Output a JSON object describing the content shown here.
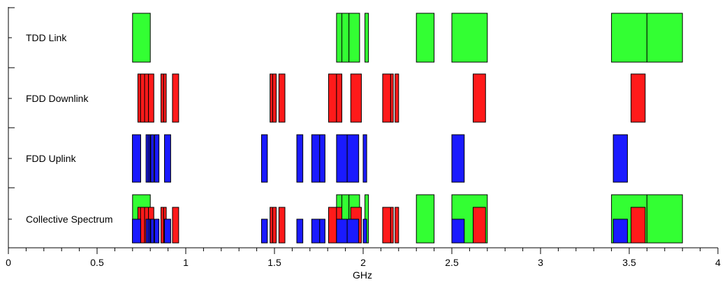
{
  "chart_data": {
    "type": "bar",
    "orientation": "horizontal-ranges",
    "title": "",
    "xlabel": "GHz",
    "ylabel": "",
    "xlim": [
      0,
      4
    ],
    "x_ticks": [
      0,
      0.5,
      1,
      1.5,
      2,
      2.5,
      3,
      3.5,
      4
    ],
    "x_tick_labels": [
      "0",
      "0.5",
      "1",
      "1.5",
      "2",
      "2.5",
      "3",
      "3.5",
      "4"
    ],
    "grid": false,
    "legend": "none",
    "categories": [
      "TDD Link",
      "FDD Downlink",
      "FDD Uplink",
      "Collective Spectrum"
    ],
    "colors": {
      "tdd": "#33ff33",
      "fdd_downlink": "#ff1a1a",
      "fdd_uplink": "#1a1aff",
      "outline": "#000000"
    },
    "bands": {
      "tdd": [
        [
          0.7,
          0.8
        ],
        [
          1.85,
          1.88
        ],
        [
          1.88,
          1.92
        ],
        [
          1.92,
          1.98
        ],
        [
          2.01,
          2.03
        ],
        [
          2.3,
          2.4
        ],
        [
          2.5,
          2.7
        ],
        [
          3.4,
          3.6
        ],
        [
          3.6,
          3.8
        ]
      ],
      "fdd_downlink": [
        [
          0.73,
          0.745
        ],
        [
          0.745,
          0.768
        ],
        [
          0.768,
          0.79
        ],
        [
          0.79,
          0.82
        ],
        [
          0.86,
          0.875
        ],
        [
          0.875,
          0.89
        ],
        [
          0.925,
          0.96
        ],
        [
          1.475,
          1.49
        ],
        [
          1.49,
          1.51
        ],
        [
          1.525,
          1.559
        ],
        [
          1.805,
          1.85
        ],
        [
          1.85,
          1.88
        ],
        [
          1.93,
          1.99
        ],
        [
          2.11,
          2.155
        ],
        [
          2.155,
          2.17
        ],
        [
          2.18,
          2.2
        ],
        [
          2.62,
          2.69
        ],
        [
          3.51,
          3.59
        ]
      ],
      "fdd_uplink": [
        [
          0.699,
          0.746
        ],
        [
          0.776,
          0.788
        ],
        [
          0.788,
          0.798
        ],
        [
          0.798,
          0.803
        ],
        [
          0.803,
          0.82
        ],
        [
          0.824,
          0.849
        ],
        [
          0.88,
          0.915
        ],
        [
          1.427,
          1.46
        ],
        [
          1.626,
          1.66
        ],
        [
          1.71,
          1.755
        ],
        [
          1.755,
          1.785
        ],
        [
          1.85,
          1.91
        ],
        [
          1.91,
          1.975
        ],
        [
          2.0,
          2.02
        ],
        [
          2.5,
          2.57
        ],
        [
          3.41,
          3.49
        ]
      ]
    }
  }
}
